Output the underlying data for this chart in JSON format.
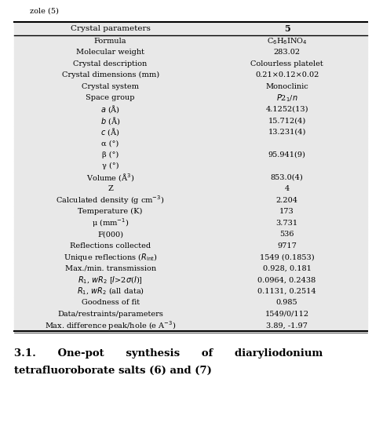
{
  "title_top": "zole (5)",
  "col1_header": "Crystal parameters",
  "col2_header": "5",
  "rows": [
    {
      "param": "Formula",
      "value": "C$_6$H$_6$INO$_4$",
      "param_style": "normal"
    },
    {
      "param": "Molecular weight",
      "value": "283.02",
      "param_style": "normal"
    },
    {
      "param": "Crystal description",
      "value": "Colourless platelet",
      "param_style": "normal"
    },
    {
      "param": "Crystal dimensions (mm)",
      "value": "0.21×0.12×0.02",
      "param_style": "normal"
    },
    {
      "param": "Crystal system",
      "value": "Monoclinic",
      "param_style": "normal"
    },
    {
      "param": "Space group",
      "value": "$P$2$_1$/$n$",
      "param_style": "normal"
    },
    {
      "param": "$a$ (Å)",
      "value": "4.1252(13)",
      "param_style": "normal"
    },
    {
      "param": "$b$ (Å)",
      "value": "15.712(4)",
      "param_style": "normal"
    },
    {
      "param": "$c$ (Å)",
      "value": "13.231(4)",
      "param_style": "normal"
    },
    {
      "param": "α (°)",
      "value": "",
      "param_style": "normal"
    },
    {
      "param": "β (°)",
      "value": "95.941(9)",
      "param_style": "normal"
    },
    {
      "param": "γ (°)",
      "value": "",
      "param_style": "normal"
    },
    {
      "param": "Volume (Å$^3$)",
      "value": "853.0(4)",
      "param_style": "normal"
    },
    {
      "param": "Z",
      "value": "4",
      "param_style": "normal"
    },
    {
      "param": "Calculated density (g cm$^{-3}$)",
      "value": "2.204",
      "param_style": "normal"
    },
    {
      "param": "Temperature (K)",
      "value": "173",
      "param_style": "normal"
    },
    {
      "param": "μ (mm$^{-1}$)",
      "value": "3.731",
      "param_style": "normal"
    },
    {
      "param": "F(000)",
      "value": "536",
      "param_style": "normal"
    },
    {
      "param": "Reflections collected",
      "value": "9717",
      "param_style": "normal"
    },
    {
      "param": "Unique reflections ($R_{\\mathrm{int}}$)",
      "value": "1549 (0.1853)",
      "param_style": "normal"
    },
    {
      "param": "Max./min. transmission",
      "value": "0.928, 0.181",
      "param_style": "normal"
    },
    {
      "param": "$R_1$, $wR_2$ [$I$>2$\\sigma$($I$)]",
      "value": "0.0964, 0.2438",
      "param_style": "normal"
    },
    {
      "param": "$R_1$, $wR_2$ (all data)",
      "value": "0.1131, 0.2514",
      "param_style": "normal"
    },
    {
      "param": "Goodness of fit",
      "value": "0.985",
      "param_style": "normal"
    },
    {
      "param": "Data/restraints/parameters",
      "value": "1549/0/112",
      "param_style": "normal"
    },
    {
      "param": "Max. difference peak/hole (e A$^{-3}$)",
      "value": "3.89, -1.97",
      "param_style": "normal"
    }
  ],
  "footer_line1": "3.1.      One-pot      synthesis      of      diaryliodonium",
  "footer_line2": "tetrafluoroborate salts (6) and (7)",
  "bg_color": "#e8e8e8",
  "font_size": 7.0,
  "header_font_size": 7.5,
  "footer_font_size": 9.5
}
